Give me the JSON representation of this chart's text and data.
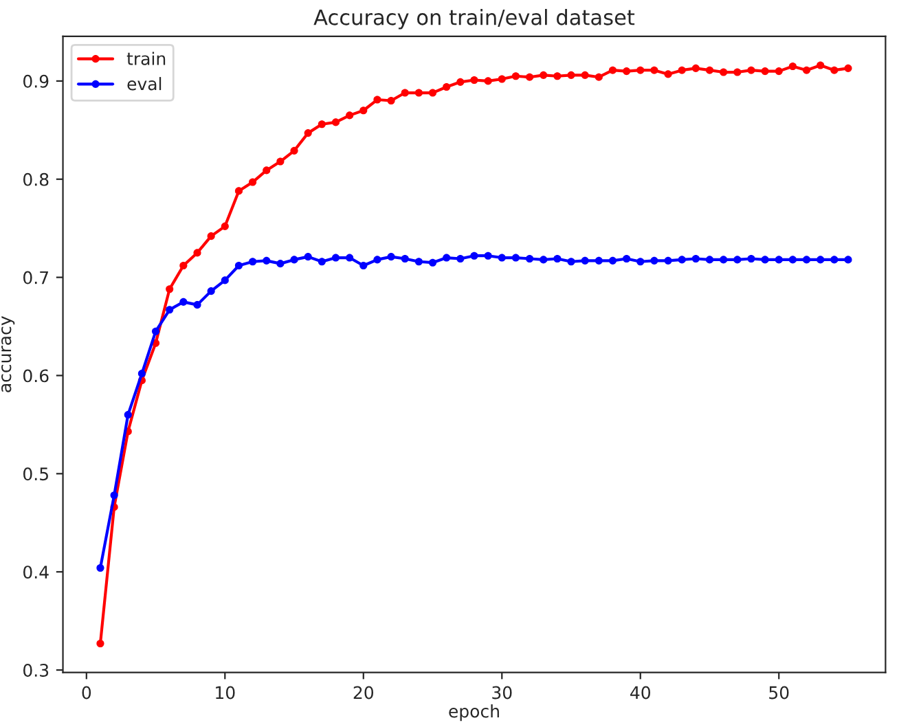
{
  "chart_data": {
    "type": "line",
    "title": "Accuracy on train/eval dataset",
    "xlabel": "epoch",
    "ylabel": "accuracy",
    "x": [
      1,
      2,
      3,
      4,
      5,
      6,
      7,
      8,
      9,
      10,
      11,
      12,
      13,
      14,
      15,
      16,
      17,
      18,
      19,
      20,
      21,
      22,
      23,
      24,
      25,
      26,
      27,
      28,
      29,
      30,
      31,
      32,
      33,
      34,
      35,
      36,
      37,
      38,
      39,
      40,
      41,
      42,
      43,
      44,
      45,
      46,
      47,
      48,
      49,
      50,
      51,
      52,
      53,
      54,
      55
    ],
    "series": [
      {
        "name": "train",
        "color": "#ff0000",
        "values": [
          0.327,
          0.466,
          0.543,
          0.595,
          0.633,
          0.688,
          0.712,
          0.725,
          0.742,
          0.752,
          0.788,
          0.797,
          0.809,
          0.818,
          0.829,
          0.847,
          0.856,
          0.858,
          0.865,
          0.87,
          0.881,
          0.88,
          0.888,
          0.888,
          0.888,
          0.894,
          0.899,
          0.901,
          0.9,
          0.902,
          0.905,
          0.904,
          0.906,
          0.905,
          0.906,
          0.906,
          0.904,
          0.911,
          0.91,
          0.911,
          0.911,
          0.907,
          0.911,
          0.913,
          0.911,
          0.909,
          0.909,
          0.911,
          0.91,
          0.91,
          0.915,
          0.911,
          0.916,
          0.911,
          0.913
        ]
      },
      {
        "name": "eval",
        "color": "#0000ff",
        "values": [
          0.404,
          0.478,
          0.56,
          0.602,
          0.645,
          0.667,
          0.675,
          0.672,
          0.686,
          0.697,
          0.712,
          0.716,
          0.717,
          0.714,
          0.718,
          0.721,
          0.716,
          0.72,
          0.72,
          0.712,
          0.718,
          0.721,
          0.719,
          0.716,
          0.715,
          0.72,
          0.719,
          0.722,
          0.722,
          0.72,
          0.72,
          0.719,
          0.718,
          0.719,
          0.716,
          0.717,
          0.717,
          0.717,
          0.719,
          0.716,
          0.717,
          0.717,
          0.718,
          0.719,
          0.718,
          0.718,
          0.718,
          0.719,
          0.718,
          0.718,
          0.718,
          0.718,
          0.718,
          0.718,
          0.718
        ]
      }
    ],
    "xlim": [
      -1.7,
      57.7
    ],
    "ylim": [
      0.2975,
      0.9455
    ],
    "xticks": [
      0,
      10,
      20,
      30,
      40,
      50
    ],
    "yticks": [
      0.3,
      0.4,
      0.5,
      0.6,
      0.7,
      0.8,
      0.9
    ],
    "legend": "top left",
    "marker": "circle",
    "line_style": "solid",
    "grid": false
  }
}
